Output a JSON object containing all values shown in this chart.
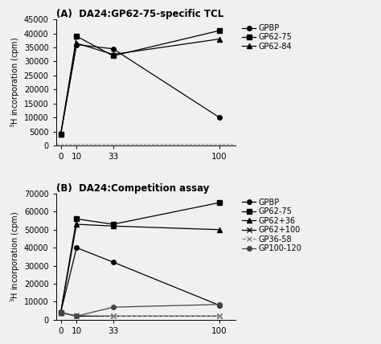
{
  "panel_A": {
    "title": "(A)  DA24:GP62-75-specific TCL",
    "x": [
      0,
      10,
      33,
      100
    ],
    "series": [
      {
        "label": "GPBP",
        "values": [
          4000,
          36000,
          34500,
          10000
        ],
        "marker": "o",
        "color": "#000000",
        "linestyle": "-",
        "markersize": 4
      },
      {
        "label": "GP62-75",
        "values": [
          4000,
          39000,
          32000,
          41000
        ],
        "marker": "s",
        "color": "#000000",
        "linestyle": "-",
        "markersize": 4
      },
      {
        "label": "GP62-84",
        "values": [
          4000,
          36500,
          32500,
          38000
        ],
        "marker": "^",
        "color": "#000000",
        "linestyle": "-",
        "markersize": 4
      }
    ],
    "ylabel": "$^{3}$H incorporation (cpm)",
    "ylim": [
      0,
      45000
    ],
    "yticks": [
      0,
      5000,
      10000,
      15000,
      20000,
      25000,
      30000,
      35000,
      40000,
      45000
    ],
    "xticks": [
      0,
      10,
      33,
      100
    ],
    "baseline_y": 500,
    "baseline_x": [
      0,
      10,
      33,
      100
    ]
  },
  "panel_B": {
    "title": "(B)  DA24:Competition assay",
    "x": [
      0,
      10,
      33,
      100
    ],
    "series": [
      {
        "label": "GPBP",
        "values": [
          4000,
          40000,
          32000,
          8000
        ],
        "marker": "o",
        "color": "#000000",
        "linestyle": "-",
        "markersize": 4
      },
      {
        "label": "GP62-75",
        "values": [
          4000,
          56000,
          53000,
          65000
        ],
        "marker": "s",
        "color": "#000000",
        "linestyle": "-",
        "markersize": 4
      },
      {
        "label": "GP62+36",
        "values": [
          4000,
          53000,
          52000,
          50000
        ],
        "marker": "^",
        "color": "#000000",
        "linestyle": "-",
        "markersize": 4
      },
      {
        "label": "GP62+100",
        "values": [
          4000,
          2000,
          2000,
          2000
        ],
        "marker": "x",
        "color": "#000000",
        "linestyle": "-",
        "markersize": 4
      },
      {
        "label": "GP36-58",
        "values": [
          4000,
          2500,
          2000,
          2000
        ],
        "marker": "x",
        "color": "#888888",
        "linestyle": "--",
        "markersize": 5
      },
      {
        "label": "GP100-120",
        "values": [
          4000,
          2000,
          7000,
          8500
        ],
        "marker": "o",
        "color": "#444444",
        "linestyle": "-",
        "markersize": 4
      }
    ],
    "ylabel": "$^{3}$H incorporation (cpm)",
    "ylim": [
      0,
      70000
    ],
    "yticks": [
      0,
      10000,
      20000,
      30000,
      40000,
      50000,
      60000,
      70000
    ],
    "xticks": [
      0,
      10,
      33,
      100
    ]
  },
  "figure_bg": "#f0f0f0",
  "font_size": 7.5,
  "title_font_size": 8.5,
  "legend_fontsize": 7,
  "xlim": [
    -3,
    110
  ]
}
